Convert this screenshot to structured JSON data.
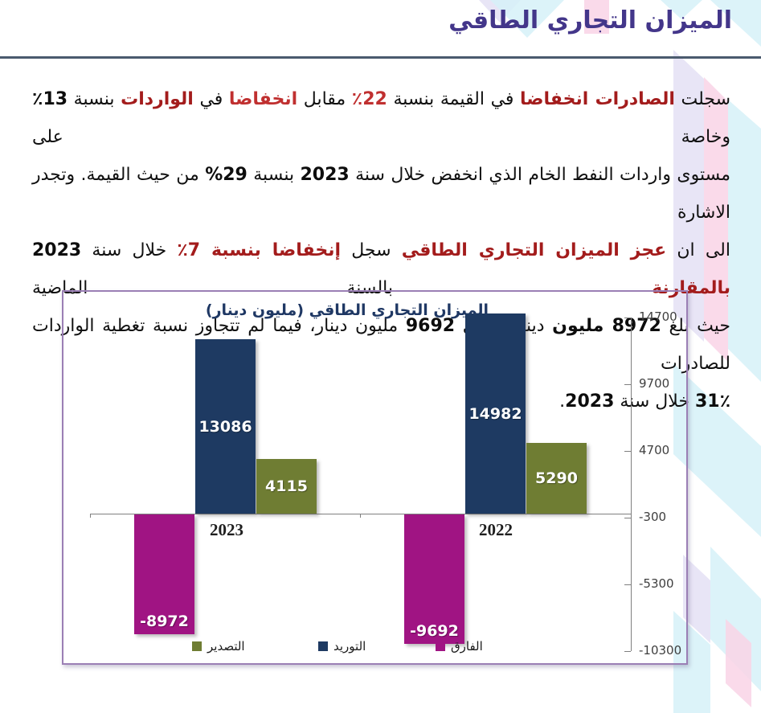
{
  "page_title": "الميزان التجاري الطاقي",
  "paragraph": {
    "lines": [
      [
        {
          "t": "سجلت ",
          "s": "n"
        },
        {
          "t": "الصادرات انخفاضا",
          "s": "rb"
        },
        {
          "t": " في القيمة بنسبة ",
          "s": "n"
        },
        {
          "t": "22٪",
          "s": "r"
        },
        {
          "t": " مقابل ",
          "s": "n"
        },
        {
          "t": "انخفاضا",
          "s": "r"
        },
        {
          "t": " في ",
          "s": "n"
        },
        {
          "t": "الواردات",
          "s": "rb"
        },
        {
          "t": " بنسبة ",
          "s": "n"
        },
        {
          "t": "13٪",
          "s": "b"
        },
        {
          "t": " وخاصة على",
          "s": "n"
        }
      ],
      [
        {
          "t": "مستوى واردات النفط الخام الذي انخفض خلال سنة ",
          "s": "n"
        },
        {
          "t": "2023",
          "s": "b"
        },
        {
          "t": " بنسبة ",
          "s": "n"
        },
        {
          "t": "29%",
          "s": "b"
        },
        {
          "t": " من حيث القيمة. وتجدر الاشارة",
          "s": "n"
        }
      ],
      [
        {
          "t": "الى ان ",
          "s": "n"
        },
        {
          "t": "عجز الميزان التجاري الطاقي",
          "s": "rb"
        },
        {
          "t": " سجل ",
          "s": "n"
        },
        {
          "t": "إنخفاضا بنسبة 7٪",
          "s": "rb"
        },
        {
          "t": " خلال سنة ",
          "s": "n"
        },
        {
          "t": "2023",
          "s": "b"
        },
        {
          "t": " ",
          "s": "n"
        },
        {
          "t": "بالمقارنة",
          "s": "rb"
        },
        {
          "t": " بالسنة الماضية",
          "s": "n"
        }
      ],
      [
        {
          "t": "حيث بلغ ",
          "s": "n"
        },
        {
          "t": "8972 مليون",
          "s": "b"
        },
        {
          "t": " دينار مقابل ",
          "s": "n"
        },
        {
          "t": "9692",
          "s": "b"
        },
        {
          "t": " مليون دينار، فيما لم تتجاوز نسبة تغطية الواردات للصادرات",
          "s": "n"
        }
      ],
      [
        {
          "t": "31٪",
          "s": "b"
        },
        {
          "t": " خلال سنة ",
          "s": "n"
        },
        {
          "t": "2023",
          "s": "b"
        },
        {
          "t": ".",
          "s": "n"
        }
      ]
    ]
  },
  "chart_data": {
    "type": "bar",
    "title": "الميزان التجاري الطاقي (مليون دينار)",
    "categories": [
      "2023",
      "2022"
    ],
    "series": [
      {
        "key": "balance",
        "name": "الفارق",
        "color": "#A01483",
        "values": [
          -8972,
          -9692
        ]
      },
      {
        "key": "imports",
        "name": "التوريد",
        "color": "#1E3A62",
        "values": [
          13086,
          14982
        ]
      },
      {
        "key": "exports",
        "name": "التصدير",
        "color": "#6F7D33",
        "values": [
          4115,
          5290
        ]
      }
    ],
    "y_ticks": [
      14700,
      9700,
      4700,
      -300,
      -5300,
      -10300
    ],
    "ylim": [
      -10300,
      14700
    ],
    "axis_side": "right",
    "grid": false,
    "legend_position": "bottom",
    "legend": [
      {
        "key": "exports",
        "label": "التصدير",
        "color": "#6F7D33"
      },
      {
        "key": "imports",
        "label": "التوريد",
        "color": "#1E3A62"
      },
      {
        "key": "balance",
        "label": "الفارق",
        "color": "#A01483"
      }
    ]
  },
  "colors": {
    "title": "#43368A",
    "separator": "#4A5A6E",
    "chart_border": "#9B7FB5",
    "chart_title": "#1F3864",
    "red_bold": "#A31C1C",
    "red": "#C03030"
  }
}
